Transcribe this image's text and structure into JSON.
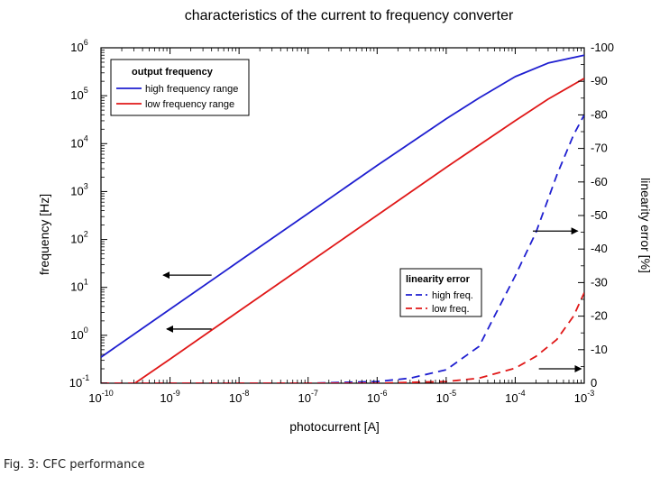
{
  "caption": "Fig. 3: CFC performance",
  "colors": {
    "blue": "#1f1fd0",
    "red": "#e01818",
    "axis": "#000000"
  },
  "chart_data": {
    "type": "line",
    "title": "characteristics of the current to frequency converter",
    "xlabel": "photocurrent [A]",
    "ylabel": "frequency [Hz]",
    "y2label": "linearity error [%]",
    "xscale": "log",
    "yscale": "log",
    "xlim": [
      1e-10,
      0.001
    ],
    "ylim": [
      0.1,
      1000000.0
    ],
    "y2lim": [
      0,
      -100
    ],
    "xticks": [
      {
        "value": 1e-10,
        "base": "10",
        "exp": "-10"
      },
      {
        "value": 1e-09,
        "base": "10",
        "exp": "-9"
      },
      {
        "value": 1e-08,
        "base": "10",
        "exp": "-8"
      },
      {
        "value": 1e-07,
        "base": "10",
        "exp": "-7"
      },
      {
        "value": 1e-06,
        "base": "10",
        "exp": "-6"
      },
      {
        "value": 1e-05,
        "base": "10",
        "exp": "-5"
      },
      {
        "value": 0.0001,
        "base": "10",
        "exp": "-4"
      },
      {
        "value": 0.001,
        "base": "10",
        "exp": "-3"
      }
    ],
    "yticks": [
      {
        "value": 0.1,
        "base": "10",
        "exp": "-1"
      },
      {
        "value": 1,
        "base": "10",
        "exp": "0"
      },
      {
        "value": 10,
        "base": "10",
        "exp": "1"
      },
      {
        "value": 100,
        "base": "10",
        "exp": "2"
      },
      {
        "value": 1000,
        "base": "10",
        "exp": "3"
      },
      {
        "value": 10000,
        "base": "10",
        "exp": "4"
      },
      {
        "value": 100000,
        "base": "10",
        "exp": "5"
      },
      {
        "value": 1000000,
        "base": "10",
        "exp": "6"
      }
    ],
    "y2ticks": [
      {
        "value": 0,
        "label": "0"
      },
      {
        "value": -10,
        "label": "-10"
      },
      {
        "value": -20,
        "label": "-20"
      },
      {
        "value": -30,
        "label": "-30"
      },
      {
        "value": -40,
        "label": "-40"
      },
      {
        "value": -50,
        "label": "-50"
      },
      {
        "value": -60,
        "label": "-60"
      },
      {
        "value": -70,
        "label": "-70"
      },
      {
        "value": -80,
        "label": "-80"
      },
      {
        "value": -90,
        "label": "-90"
      },
      {
        "value": -100,
        "label": "-100"
      }
    ],
    "series": [
      {
        "name": "high frequency range",
        "axis": "left",
        "style": "solid",
        "color": "#1f1fd0",
        "points": [
          [
            1e-10,
            0.35
          ],
          [
            1e-09,
            3.5
          ],
          [
            1e-08,
            35
          ],
          [
            1e-07,
            350
          ],
          [
            1e-06,
            3500
          ],
          [
            1e-05,
            33000
          ],
          [
            3e-05,
            90000
          ],
          [
            0.0001,
            250000
          ],
          [
            0.0003,
            480000
          ],
          [
            0.001,
            700000
          ]
        ]
      },
      {
        "name": "low frequency range",
        "axis": "left",
        "style": "solid",
        "color": "#e01818",
        "points": [
          [
            3.1e-10,
            0.1
          ],
          [
            1e-09,
            0.32
          ],
          [
            1e-08,
            3.2
          ],
          [
            1e-07,
            32
          ],
          [
            1e-06,
            320
          ],
          [
            1e-05,
            3200
          ],
          [
            0.0001,
            30000
          ],
          [
            0.0003,
            85000
          ],
          [
            0.001,
            230000
          ]
        ]
      },
      {
        "name": "high freq.",
        "axis": "right",
        "style": "dashed",
        "color": "#1f1fd0",
        "points": [
          [
            1e-10,
            0
          ],
          [
            1e-07,
            0
          ],
          [
            1e-06,
            -0.5
          ],
          [
            3e-06,
            -1.5
          ],
          [
            1e-05,
            -4
          ],
          [
            3e-05,
            -11
          ],
          [
            5e-05,
            -20
          ],
          [
            0.0001,
            -32
          ],
          [
            0.0002,
            -45
          ],
          [
            0.0004,
            -62
          ],
          [
            0.0007,
            -74
          ],
          [
            0.001,
            -80
          ]
        ]
      },
      {
        "name": "low freq.",
        "axis": "right",
        "style": "dashed",
        "color": "#e01818",
        "points": [
          [
            1e-10,
            0
          ],
          [
            1e-06,
            0
          ],
          [
            1e-05,
            -0.5
          ],
          [
            3e-05,
            -1.5
          ],
          [
            0.0001,
            -4.5
          ],
          [
            0.0002,
            -8
          ],
          [
            0.0004,
            -13
          ],
          [
            0.0007,
            -20
          ],
          [
            0.001,
            -27
          ]
        ]
      }
    ],
    "legend_output": {
      "title": "output frequency",
      "placement": "top-left",
      "entries": [
        "high frequency range",
        "low frequency range"
      ]
    },
    "legend_error": {
      "title": "linearity error",
      "placement": "center-right",
      "entries": [
        "high freq.",
        "low freq."
      ]
    },
    "arrows": [
      {
        "direction": "left",
        "from": [
          4e-09,
          18
        ],
        "to": [
          8e-10,
          18
        ]
      },
      {
        "direction": "left",
        "from": [
          4e-09,
          1.35
        ],
        "to": [
          9e-10,
          1.35
        ]
      },
      {
        "direction": "right",
        "from": [
          0.00018,
          150
        ],
        "to": [
          0.0008,
          150
        ]
      },
      {
        "direction": "right",
        "from": [
          0.00022,
          0.2
        ],
        "to": [
          0.0009,
          0.2
        ]
      }
    ]
  }
}
